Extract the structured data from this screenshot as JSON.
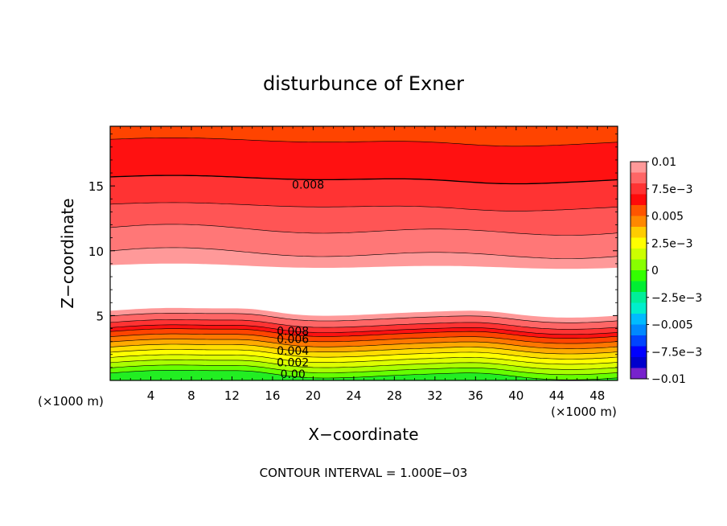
{
  "chart_data": {
    "type": "contour",
    "title": "disturbunce of Exner",
    "xlabel": "X−coordinate",
    "ylabel": "Z−coordinate",
    "x_unit": "(×1000 m)",
    "y_unit": "(×1000 m)",
    "xlim": [
      0,
      50
    ],
    "ylim": [
      0,
      19.6
    ],
    "x_ticks": [
      4,
      8,
      12,
      16,
      20,
      24,
      28,
      32,
      36,
      40,
      44,
      48
    ],
    "y_ticks": [
      5,
      10,
      15
    ],
    "footer": "CONTOUR INTERVAL = 1.000E−03",
    "colorbar": {
      "min": -0.01,
      "max": 0.01,
      "labels": [
        {
          "value": 0.01,
          "text": "0.01"
        },
        {
          "value": 0.0075,
          "text": "7.5e−3"
        },
        {
          "value": 0.005,
          "text": "0.005"
        },
        {
          "value": 0.0025,
          "text": "2.5e−3"
        },
        {
          "value": 0,
          "text": "0"
        },
        {
          "value": -0.0025,
          "text": "−2.5e−3"
        },
        {
          "value": -0.005,
          "text": "−0.005"
        },
        {
          "value": -0.0075,
          "text": "−7.5e−3"
        },
        {
          "value": -0.01,
          "text": "−0.01"
        }
      ],
      "colors": [
        "#ff9999",
        "#ff6666",
        "#ff3333",
        "#ff0a0a",
        "#ff5500",
        "#ff8800",
        "#ffcc00",
        "#ffff00",
        "#ccff00",
        "#88ff00",
        "#33ff00",
        "#00ee33",
        "#00ee99",
        "#00eecc",
        "#00bbff",
        "#0088ff",
        "#0044ff",
        "#0000ff",
        "#0000cc",
        "#7722cc"
      ]
    },
    "bands": [
      {
        "z": 0.0,
        "color": "#22ee22"
      },
      {
        "z": 0.4,
        "color": "#66ff00"
      },
      {
        "z": 0.8,
        "color": "#aaff00"
      },
      {
        "z": 1.2,
        "color": "#ddff00"
      },
      {
        "z": 1.6,
        "color": "#ffff00"
      },
      {
        "z": 2.0,
        "color": "#ffdd00"
      },
      {
        "z": 2.4,
        "color": "#ffaa00"
      },
      {
        "z": 2.8,
        "color": "#ff7700"
      },
      {
        "z": 3.2,
        "color": "#ff4400"
      },
      {
        "z": 3.6,
        "color": "#ff1111"
      },
      {
        "z": 3.9,
        "color": "#ff3333"
      },
      {
        "z": 4.3,
        "color": "#ff6666"
      },
      {
        "z": 4.8,
        "color": "#ff9999"
      },
      {
        "z": 5.2,
        "color": "#ffffff"
      },
      {
        "z": 8.8,
        "color": "#ff9999"
      },
      {
        "z": 9.8,
        "color": "#ff7777"
      },
      {
        "z": 11.6,
        "color": "#ff5555"
      },
      {
        "z": 13.5,
        "color": "#ff3333"
      },
      {
        "z": 15.6,
        "color": "#ff1111"
      },
      {
        "z": 18.5,
        "color": "#ff4400"
      }
    ],
    "contour_labels": [
      {
        "x": 19.5,
        "z": 15.1,
        "text": "0.008"
      },
      {
        "x": 18,
        "z": 3.8,
        "text": "0.008"
      },
      {
        "x": 18,
        "z": 3.2,
        "text": "0.006"
      },
      {
        "x": 18,
        "z": 2.3,
        "text": "0.004"
      },
      {
        "x": 18,
        "z": 1.4,
        "text": "0.002"
      },
      {
        "x": 18,
        "z": 0.5,
        "text": "0.00"
      }
    ]
  }
}
